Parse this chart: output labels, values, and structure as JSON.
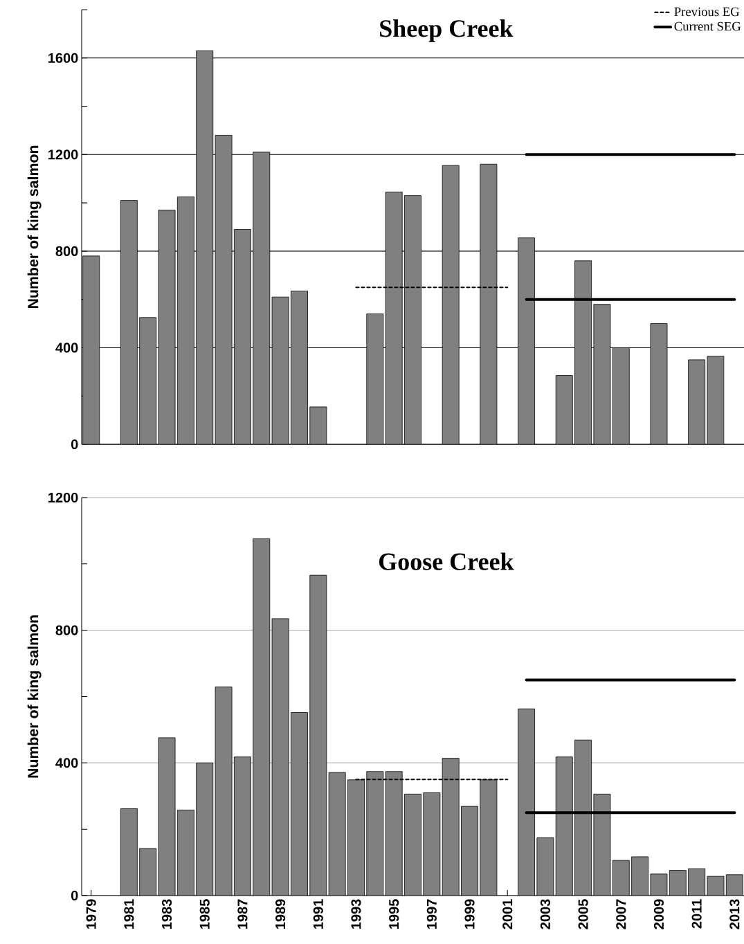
{
  "chart_data": [
    {
      "type": "bar",
      "title": "Sheep Creek",
      "ylabel": "Number of king salmon",
      "x": [
        1979,
        1980,
        1981,
        1982,
        1983,
        1984,
        1985,
        1986,
        1987,
        1988,
        1989,
        1990,
        1991,
        1992,
        1993,
        1994,
        1995,
        1996,
        1997,
        1998,
        1999,
        2000,
        2001,
        2002,
        2003,
        2004,
        2005,
        2006,
        2007,
        2008,
        2009,
        2010,
        2011,
        2012
      ],
      "series": [
        {
          "color": "#808080",
          "values": [
            780,
            null,
            1010,
            525,
            970,
            1025,
            1630,
            1280,
            890,
            1210,
            610,
            635,
            155,
            null,
            null,
            540,
            1045,
            1030,
            null,
            1155,
            null,
            1160,
            null,
            855,
            null,
            285,
            760,
            580,
            400,
            null,
            500,
            null,
            350,
            365
          ]
        },
        {
          "type": "line",
          "name": "Previous EG",
          "x": [
            1993,
            2001
          ],
          "values": [
            650,
            650
          ],
          "color": "#000000",
          "line_style": "dashed"
        },
        {
          "type": "line",
          "name": "Current SEG",
          "x": [
            2002,
            2013
          ],
          "values": [
            600,
            600
          ],
          "color": "#000000",
          "line_style": "solid"
        },
        {
          "type": "line",
          "x": [
            2002,
            2013
          ],
          "values": [
            1200,
            1200
          ],
          "color": "#000000",
          "line_style": "solid"
        }
      ],
      "xlim": [
        1978.5,
        2013.5
      ],
      "ylim": [
        0,
        1800
      ],
      "yticks": [
        0,
        {
          "value": 200,
          "label": null
        },
        400,
        {
          "value": 600,
          "label": null
        },
        800,
        {
          "value": 1000,
          "label": null
        },
        1200,
        {
          "value": 1400,
          "label": null
        },
        1600,
        {
          "value": 1800,
          "label": null
        }
      ],
      "grid": "y",
      "legend": "top right",
      "tick_labels": "y"
    },
    {
      "type": "bar",
      "title": "Goose Creek",
      "ylabel": "Number of king salmon",
      "x": [
        1981,
        1982,
        1983,
        1984,
        1985,
        1986,
        1987,
        1988,
        1989,
        1990,
        1991,
        1992,
        1993,
        1994,
        1995,
        1996,
        1997,
        1998,
        1999,
        2000,
        2001,
        2002,
        2003,
        2004,
        2005,
        2006,
        2007,
        2008,
        2009,
        2010,
        2011,
        2012,
        2013
      ],
      "series": [
        {
          "color": "#808080",
          "values": [
            262,
            142,
            476,
            258,
            400,
            629,
            418,
            1076,
            835,
            552,
            966,
            371,
            349,
            374,
            374,
            306,
            310,
            414,
            269,
            349,
            null,
            563,
            174,
            418,
            469,
            306,
            106,
            117,
            65,
            76,
            81,
            58,
            63
          ]
        },
        {
          "type": "line",
          "x": [
            1993,
            2001
          ],
          "values": [
            350,
            350
          ],
          "color": "#000000",
          "line_style": "dashed"
        },
        {
          "type": "line",
          "x": [
            2002,
            2013
          ],
          "values": [
            250,
            250
          ],
          "color": "#000000",
          "line_style": "solid"
        },
        {
          "type": "line",
          "x": [
            2002,
            2013
          ],
          "values": [
            650,
            650
          ],
          "color": "#000000",
          "line_style": "solid"
        }
      ],
      "xlim": [
        1978.5,
        2013.5
      ],
      "ylim": [
        0,
        1200
      ],
      "xticks": [
        1979,
        1981,
        1983,
        1985,
        1987,
        1989,
        1991,
        1993,
        1995,
        1997,
        1999,
        2001,
        2003,
        2005,
        2007,
        2009,
        2011,
        2013
      ],
      "yticks": [
        0,
        {
          "value": 200,
          "label": null
        },
        400,
        {
          "value": 600,
          "label": null
        },
        800,
        {
          "value": 1000,
          "label": null
        },
        1200
      ],
      "grid": "y"
    }
  ]
}
